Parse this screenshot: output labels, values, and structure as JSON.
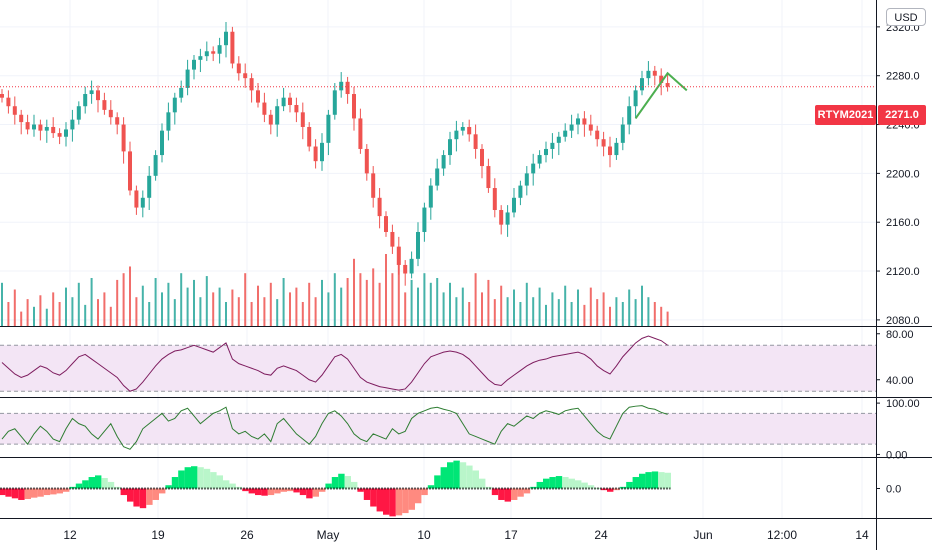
{
  "currency": "USD",
  "symbol": "RTYM2021",
  "last_price": "2271.0",
  "colors": {
    "up": "#26a69a",
    "down": "#ef5350",
    "rsi": "#7e1d5f",
    "stoch": "#2e7d32",
    "band_fill": "#f3e5f5",
    "macd_up_strong": "#00e676",
    "macd_up_weak": "#b9f6ca",
    "macd_down_strong": "#ff1744",
    "macd_down_weak": "#ff8a80",
    "price_line": "#f23645",
    "trend": "#4caf50"
  },
  "chart_data": [
    {
      "type": "candlestick",
      "title": "RTYM2021",
      "y_ticks": [
        "2320.0",
        "2280.0",
        "2240.0",
        "2200.0",
        "2160.0",
        "2120.0",
        "2080.0"
      ],
      "ylim": [
        2075,
        2342
      ],
      "x_ticks": [
        "12",
        "19",
        "26",
        "May",
        "10",
        "17",
        "24",
        "Jun",
        "12:00",
        "14"
      ],
      "last_price": 2271.0,
      "close_series": [
        2262,
        2255,
        2248,
        2242,
        2236,
        2240,
        2235,
        2238,
        2233,
        2230,
        2236,
        2244,
        2255,
        2265,
        2268,
        2260,
        2252,
        2246,
        2240,
        2218,
        2186,
        2172,
        2180,
        2198,
        2215,
        2235,
        2250,
        2262,
        2270,
        2285,
        2293,
        2296,
        2300,
        2298,
        2305,
        2316,
        2290,
        2282,
        2278,
        2268,
        2258,
        2248,
        2240,
        2255,
        2262,
        2256,
        2250,
        2238,
        2222,
        2210,
        2225,
        2248,
        2268,
        2275,
        2265,
        2245,
        2220,
        2200,
        2180,
        2165,
        2152,
        2140,
        2125,
        2118,
        2130,
        2152,
        2172,
        2190,
        2204,
        2215,
        2228,
        2235,
        2238,
        2232,
        2220,
        2206,
        2188,
        2170,
        2158,
        2168,
        2180,
        2190,
        2200,
        2208,
        2215,
        2220,
        2225,
        2230,
        2235,
        2240,
        2245,
        2240,
        2235,
        2228,
        2222,
        2215,
        2225,
        2240,
        2255,
        2268,
        2278,
        2284,
        2280,
        2274,
        2271
      ],
      "volume_series": [
        45,
        25,
        38,
        15,
        28,
        20,
        32,
        18,
        35,
        25,
        40,
        30,
        45,
        22,
        50,
        28,
        35,
        20,
        48,
        55,
        62,
        30,
        42,
        25,
        50,
        35,
        45,
        28,
        55,
        40,
        48,
        30,
        52,
        35,
        40,
        25,
        38,
        30,
        55,
        25,
        42,
        30,
        45,
        28,
        50,
        35,
        40,
        25,
        45,
        30,
        48,
        35,
        55,
        40,
        50,
        70,
        55,
        48,
        60,
        45,
        75,
        55,
        65,
        35,
        48,
        40,
        55,
        45,
        50,
        35,
        45,
        30,
        40,
        25,
        55,
        35,
        48,
        28,
        42,
        30,
        38,
        25,
        45,
        30,
        40,
        22,
        35,
        28,
        42,
        25,
        38,
        22,
        40,
        28,
        35,
        20,
        30,
        25,
        38,
        28,
        42,
        30,
        25,
        20,
        15
      ]
    },
    {
      "type": "line",
      "title": "",
      "y_ticks": [
        "80.00",
        "40.00"
      ],
      "ylim": [
        25,
        85
      ],
      "band": [
        30,
        70
      ],
      "series": [
        {
          "values": [
            55,
            50,
            45,
            42,
            44,
            48,
            52,
            50,
            46,
            44,
            48,
            54,
            60,
            62,
            58,
            54,
            50,
            46,
            42,
            35,
            30,
            32,
            38,
            45,
            52,
            58,
            62,
            65,
            66,
            68,
            70,
            68,
            66,
            64,
            68,
            72,
            58,
            54,
            52,
            50,
            48,
            45,
            44,
            50,
            52,
            50,
            48,
            44,
            40,
            38,
            44,
            52,
            60,
            62,
            58,
            50,
            42,
            38,
            36,
            34,
            33,
            32,
            31,
            32,
            38,
            46,
            54,
            60,
            62,
            64,
            65,
            64,
            62,
            58,
            52,
            46,
            40,
            36,
            35,
            40,
            44,
            48,
            52,
            55,
            57,
            58,
            60,
            61,
            62,
            63,
            64,
            62,
            58,
            52,
            48,
            45,
            52,
            60,
            66,
            72,
            76,
            78,
            76,
            74,
            70
          ]
        }
      ]
    },
    {
      "type": "line",
      "title": "",
      "y_ticks": [
        "100.00",
        "0.00"
      ],
      "ylim": [
        -5,
        108
      ],
      "band": [
        20,
        80
      ],
      "series": [
        {
          "values": [
            30,
            45,
            50,
            35,
            20,
            40,
            55,
            45,
            30,
            25,
            50,
            70,
            60,
            55,
            40,
            30,
            45,
            60,
            35,
            15,
            10,
            25,
            50,
            60,
            70,
            80,
            65,
            70,
            85,
            90,
            75,
            60,
            70,
            80,
            85,
            92,
            50,
            40,
            45,
            35,
            30,
            40,
            25,
            60,
            70,
            55,
            40,
            30,
            20,
            35,
            60,
            80,
            85,
            75,
            60,
            40,
            30,
            25,
            40,
            35,
            30,
            50,
            40,
            45,
            70,
            80,
            85,
            90,
            92,
            88,
            85,
            80,
            60,
            40,
            35,
            30,
            25,
            20,
            45,
            60,
            55,
            65,
            75,
            70,
            80,
            85,
            82,
            78,
            85,
            88,
            90,
            75,
            60,
            45,
            35,
            30,
            55,
            80,
            92,
            94,
            95,
            90,
            88,
            82,
            78
          ]
        }
      ]
    },
    {
      "type": "bar",
      "title": "",
      "y_ticks": [
        "0.0"
      ],
      "ylim": [
        -9,
        9
      ],
      "values": [
        -2,
        -2.5,
        -3,
        -3.5,
        -3.2,
        -2.8,
        -2.5,
        -2.0,
        -1.8,
        -1.5,
        -1.0,
        0.5,
        1.5,
        2.5,
        3.5,
        4.0,
        3.2,
        2.0,
        0.5,
        -2.0,
        -4.0,
        -5.5,
        -6.0,
        -5.0,
        -3.5,
        -1.5,
        1.0,
        3.5,
        5.5,
        6.5,
        6.8,
        6.5,
        6.0,
        5.0,
        4.0,
        2.5,
        1.5,
        0.5,
        -0.8,
        -1.5,
        -2.0,
        -2.2,
        -2.0,
        -1.5,
        -1.0,
        -0.8,
        -1.2,
        -2.0,
        -3.0,
        -2.5,
        -1.0,
        1.5,
        3.5,
        4.5,
        3.8,
        2.0,
        -1.0,
        -3.5,
        -5.5,
        -7.0,
        -8.0,
        -8.5,
        -8.2,
        -7.5,
        -6.5,
        -4.5,
        -2.0,
        1.0,
        4.0,
        6.5,
        8.0,
        8.5,
        8.0,
        7.0,
        5.5,
        3.0,
        0.5,
        -2.0,
        -3.5,
        -4.0,
        -3.5,
        -2.5,
        -1.5,
        0.5,
        2.0,
        3.0,
        3.5,
        3.8,
        3.5,
        3.0,
        2.5,
        1.8,
        1.0,
        0.2,
        -0.5,
        -1.0,
        -0.5,
        0.5,
        2.0,
        3.5,
        4.5,
        5.0,
        5.2,
        5.0,
        4.8
      ]
    }
  ]
}
